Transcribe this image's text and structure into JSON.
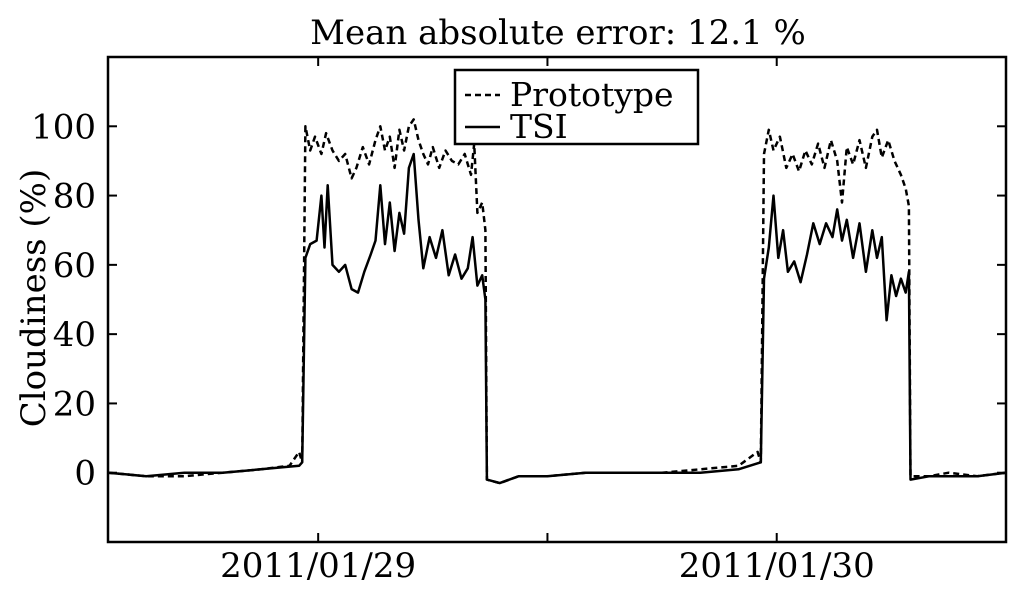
{
  "chart_data": {
    "type": "line",
    "title": "Mean absolute error: 12.1 %",
    "xlabel": "",
    "ylabel": "Cloudiness (%)",
    "xlim": [
      "2011-01-28T13:00",
      "2011-01-30T12:00"
    ],
    "ylim": [
      -20,
      120
    ],
    "y_ticks": [
      0,
      20,
      40,
      60,
      80,
      100
    ],
    "x_ticks": [
      {
        "value": "2011-01-29T00:00",
        "label": "2011/01/29"
      },
      {
        "value": "2011-01-29T12:00",
        "label": ""
      },
      {
        "value": "2011-01-30T00:00",
        "label": "2011/01/30"
      }
    ],
    "grid": false,
    "legend_placement": "top-center",
    "series": [
      {
        "name": "Prototype",
        "style": "dashed",
        "color": "#000000",
        "points": [
          [
            "2011-01-28T13:00",
            0
          ],
          [
            "2011-01-28T15:00",
            -1
          ],
          [
            "2011-01-28T17:00",
            -1
          ],
          [
            "2011-01-28T19:00",
            0
          ],
          [
            "2011-01-28T21:00",
            1
          ],
          [
            "2011-01-28T22:30",
            2
          ],
          [
            "2011-01-28T23:00",
            6
          ],
          [
            "2011-01-28T23:10",
            3
          ],
          [
            "2011-01-28T23:20",
            100
          ],
          [
            "2011-01-28T23:35",
            93
          ],
          [
            "2011-01-28T23:50",
            97
          ],
          [
            "2011-01-29T00:10",
            92
          ],
          [
            "2011-01-29T00:25",
            98
          ],
          [
            "2011-01-29T00:45",
            93
          ],
          [
            "2011-01-29T01:05",
            90
          ],
          [
            "2011-01-29T01:25",
            92
          ],
          [
            "2011-01-29T01:45",
            85
          ],
          [
            "2011-01-29T02:00",
            88
          ],
          [
            "2011-01-29T02:20",
            94
          ],
          [
            "2011-01-29T02:40",
            89
          ],
          [
            "2011-01-29T03:00",
            96
          ],
          [
            "2011-01-29T03:15",
            100
          ],
          [
            "2011-01-29T03:30",
            93
          ],
          [
            "2011-01-29T03:45",
            97
          ],
          [
            "2011-01-29T04:00",
            88
          ],
          [
            "2011-01-29T04:15",
            99
          ],
          [
            "2011-01-29T04:30",
            93
          ],
          [
            "2011-01-29T04:45",
            100
          ],
          [
            "2011-01-29T05:00",
            102
          ],
          [
            "2011-01-29T05:15",
            96
          ],
          [
            "2011-01-29T05:30",
            92
          ],
          [
            "2011-01-29T05:45",
            89
          ],
          [
            "2011-01-29T06:00",
            94
          ],
          [
            "2011-01-29T06:20",
            88
          ],
          [
            "2011-01-29T06:40",
            93
          ],
          [
            "2011-01-29T07:00",
            90
          ],
          [
            "2011-01-29T07:20",
            89
          ],
          [
            "2011-01-29T07:40",
            92
          ],
          [
            "2011-01-29T08:00",
            86
          ],
          [
            "2011-01-29T08:10",
            95
          ],
          [
            "2011-01-29T08:20",
            75
          ],
          [
            "2011-01-29T08:35",
            78
          ],
          [
            "2011-01-29T08:45",
            70
          ],
          [
            "2011-01-29T08:50",
            -2
          ],
          [
            "2011-01-29T09:30",
            -3
          ],
          [
            "2011-01-29T10:30",
            -1
          ],
          [
            "2011-01-29T12:00",
            -1
          ],
          [
            "2011-01-29T14:00",
            0
          ],
          [
            "2011-01-29T16:00",
            0
          ],
          [
            "2011-01-29T18:00",
            0
          ],
          [
            "2011-01-29T20:00",
            1
          ],
          [
            "2011-01-29T22:00",
            2
          ],
          [
            "2011-01-29T23:00",
            6
          ],
          [
            "2011-01-29T23:10",
            3
          ],
          [
            "2011-01-29T23:20",
            92
          ],
          [
            "2011-01-29T23:35",
            99
          ],
          [
            "2011-01-29T23:50",
            93
          ],
          [
            "2011-01-30T00:10",
            97
          ],
          [
            "2011-01-30T00:30",
            88
          ],
          [
            "2011-01-30T00:50",
            92
          ],
          [
            "2011-01-30T01:10",
            87
          ],
          [
            "2011-01-30T01:30",
            93
          ],
          [
            "2011-01-30T01:50",
            89
          ],
          [
            "2011-01-30T02:10",
            95
          ],
          [
            "2011-01-30T02:30",
            88
          ],
          [
            "2011-01-30T02:50",
            96
          ],
          [
            "2011-01-30T03:10",
            90
          ],
          [
            "2011-01-30T03:25",
            78
          ],
          [
            "2011-01-30T03:40",
            94
          ],
          [
            "2011-01-30T04:00",
            89
          ],
          [
            "2011-01-30T04:20",
            96
          ],
          [
            "2011-01-30T04:40",
            88
          ],
          [
            "2011-01-30T05:00",
            97
          ],
          [
            "2011-01-30T05:15",
            99
          ],
          [
            "2011-01-30T05:30",
            91
          ],
          [
            "2011-01-30T05:50",
            96
          ],
          [
            "2011-01-30T06:10",
            90
          ],
          [
            "2011-01-30T06:30",
            86
          ],
          [
            "2011-01-30T06:45",
            82
          ],
          [
            "2011-01-30T06:55",
            77
          ],
          [
            "2011-01-30T07:00",
            -1
          ],
          [
            "2011-01-30T08:00",
            -1
          ],
          [
            "2011-01-30T09:00",
            0
          ],
          [
            "2011-01-30T10:30",
            -1
          ],
          [
            "2011-01-30T12:00",
            0
          ]
        ]
      },
      {
        "name": "TSI",
        "style": "solid",
        "color": "#000000",
        "points": [
          [
            "2011-01-28T13:00",
            0
          ],
          [
            "2011-01-28T15:00",
            -1
          ],
          [
            "2011-01-28T17:00",
            0
          ],
          [
            "2011-01-28T19:00",
            0
          ],
          [
            "2011-01-28T21:00",
            1
          ],
          [
            "2011-01-28T23:00",
            2
          ],
          [
            "2011-01-28T23:10",
            3
          ],
          [
            "2011-01-28T23:20",
            62
          ],
          [
            "2011-01-28T23:35",
            66
          ],
          [
            "2011-01-28T23:55",
            67
          ],
          [
            "2011-01-29T00:10",
            80
          ],
          [
            "2011-01-29T00:20",
            65
          ],
          [
            "2011-01-29T00:30",
            83
          ],
          [
            "2011-01-29T00:45",
            60
          ],
          [
            "2011-01-29T01:05",
            58
          ],
          [
            "2011-01-29T01:25",
            60
          ],
          [
            "2011-01-29T01:45",
            53
          ],
          [
            "2011-01-29T02:05",
            52
          ],
          [
            "2011-01-29T02:25",
            58
          ],
          [
            "2011-01-29T02:45",
            63
          ],
          [
            "2011-01-29T03:00",
            67
          ],
          [
            "2011-01-29T03:15",
            83
          ],
          [
            "2011-01-29T03:30",
            66
          ],
          [
            "2011-01-29T03:45",
            78
          ],
          [
            "2011-01-29T04:00",
            64
          ],
          [
            "2011-01-29T04:15",
            75
          ],
          [
            "2011-01-29T04:30",
            69
          ],
          [
            "2011-01-29T04:45",
            88
          ],
          [
            "2011-01-29T05:00",
            92
          ],
          [
            "2011-01-29T05:15",
            73
          ],
          [
            "2011-01-29T05:30",
            59
          ],
          [
            "2011-01-29T05:50",
            68
          ],
          [
            "2011-01-29T06:10",
            62
          ],
          [
            "2011-01-29T06:30",
            70
          ],
          [
            "2011-01-29T06:50",
            57
          ],
          [
            "2011-01-29T07:10",
            63
          ],
          [
            "2011-01-29T07:30",
            56
          ],
          [
            "2011-01-29T07:50",
            59
          ],
          [
            "2011-01-29T08:05",
            68
          ],
          [
            "2011-01-29T08:20",
            54
          ],
          [
            "2011-01-29T08:35",
            57
          ],
          [
            "2011-01-29T08:45",
            50
          ],
          [
            "2011-01-29T08:50",
            -2
          ],
          [
            "2011-01-29T09:30",
            -3
          ],
          [
            "2011-01-29T10:30",
            -1
          ],
          [
            "2011-01-29T12:00",
            -1
          ],
          [
            "2011-01-29T14:00",
            0
          ],
          [
            "2011-01-29T16:00",
            0
          ],
          [
            "2011-01-29T18:00",
            0
          ],
          [
            "2011-01-29T20:00",
            0
          ],
          [
            "2011-01-29T22:00",
            1
          ],
          [
            "2011-01-29T23:10",
            3
          ],
          [
            "2011-01-29T23:20",
            56
          ],
          [
            "2011-01-29T23:35",
            65
          ],
          [
            "2011-01-29T23:50",
            80
          ],
          [
            "2011-01-30T00:05",
            62
          ],
          [
            "2011-01-30T00:20",
            70
          ],
          [
            "2011-01-30T00:35",
            58
          ],
          [
            "2011-01-30T00:55",
            61
          ],
          [
            "2011-01-30T01:15",
            55
          ],
          [
            "2011-01-30T01:35",
            63
          ],
          [
            "2011-01-30T01:55",
            72
          ],
          [
            "2011-01-30T02:15",
            66
          ],
          [
            "2011-01-30T02:35",
            72
          ],
          [
            "2011-01-30T02:55",
            68
          ],
          [
            "2011-01-30T03:10",
            76
          ],
          [
            "2011-01-30T03:25",
            67
          ],
          [
            "2011-01-30T03:40",
            73
          ],
          [
            "2011-01-30T04:00",
            62
          ],
          [
            "2011-01-30T04:20",
            72
          ],
          [
            "2011-01-30T04:40",
            58
          ],
          [
            "2011-01-30T05:00",
            70
          ],
          [
            "2011-01-30T05:15",
            62
          ],
          [
            "2011-01-30T05:30",
            68
          ],
          [
            "2011-01-30T05:45",
            44
          ],
          [
            "2011-01-30T06:00",
            57
          ],
          [
            "2011-01-30T06:15",
            51
          ],
          [
            "2011-01-30T06:30",
            56
          ],
          [
            "2011-01-30T06:45",
            52
          ],
          [
            "2011-01-30T06:55",
            58
          ],
          [
            "2011-01-30T07:00",
            -2
          ],
          [
            "2011-01-30T08:00",
            -1
          ],
          [
            "2011-01-30T09:00",
            -1
          ],
          [
            "2011-01-30T10:30",
            -1
          ],
          [
            "2011-01-30T12:00",
            0
          ]
        ]
      }
    ]
  }
}
